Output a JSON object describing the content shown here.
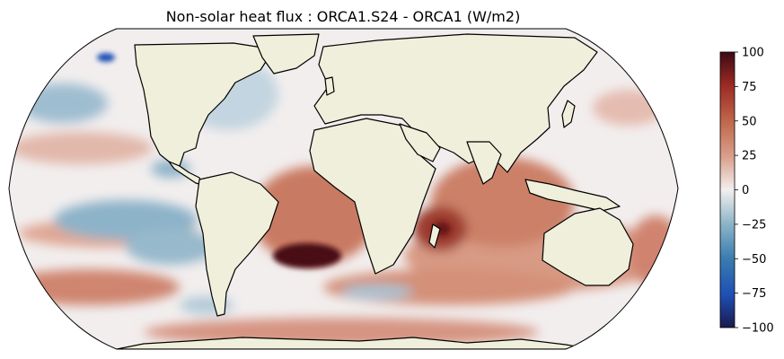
{
  "title": "Non-solar heat flux : ORCA1.S24 - ORCA1 (W/m2)",
  "colorbar": {
    "colormap": "diverging (navy-blue-teal-white-red-dark red)",
    "min": -100,
    "max": 100,
    "ticks": [
      {
        "value": 100,
        "label": "100"
      },
      {
        "value": 75,
        "label": "75"
      },
      {
        "value": 50,
        "label": "50"
      },
      {
        "value": 25,
        "label": "25"
      },
      {
        "value": 0,
        "label": "0"
      },
      {
        "value": -25,
        "label": "−25"
      },
      {
        "value": -50,
        "label": "−50"
      },
      {
        "value": -75,
        "label": "−75"
      },
      {
        "value": -100,
        "label": "−100"
      }
    ]
  },
  "colors": {
    "land": "#efefdb",
    "coast": "#000000",
    "neutral": "#f2eeee",
    "warm": "#c0705a",
    "strong_warm": "#5a0a14",
    "cool": "#6ea0bf",
    "strong_cool": "#1e50b4"
  },
  "map": {
    "projection": "Robinson",
    "central_longitude": 0
  }
}
